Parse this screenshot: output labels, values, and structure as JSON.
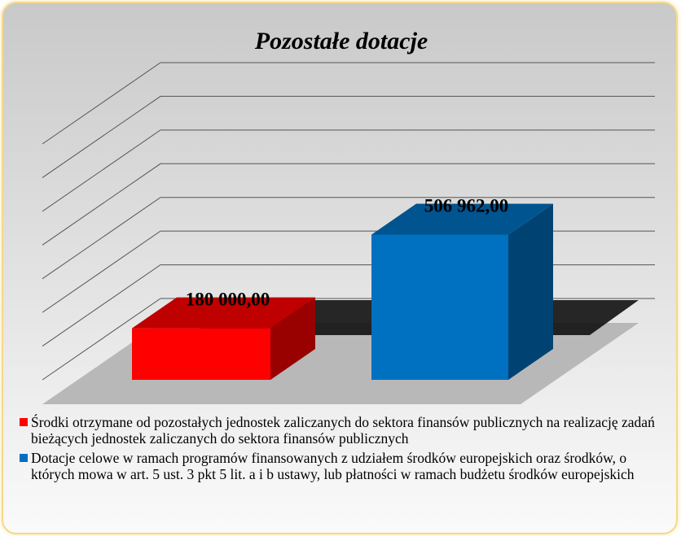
{
  "chart_data": {
    "type": "bar3d",
    "title": "Pozostałe dotacje",
    "series": [
      {
        "name": "Środki otrzymane od pozostałych jednostek zaliczanych do sektora finansów publicznych na realizację zadań bieżących jednostek zaliczanych do sektora finansów publicznych",
        "color": "#ff0000",
        "values": [
          180000
        ],
        "value_labels": [
          "180 000,00"
        ]
      },
      {
        "name": "Dotacje celowe w ramach programów finansowanych z udziałem środków europejskich oraz środków, o których mowa w art. 5 ust. 3 pkt 5 lit. a i b ustawy, lub płatności w ramach budżetu środków europejskich",
        "color": "#0070c0",
        "values": [
          506962
        ],
        "value_labels": [
          "506 962,00"
        ]
      }
    ],
    "ylim": [
      0,
      700000
    ],
    "grid": true,
    "legend": "bottom"
  }
}
